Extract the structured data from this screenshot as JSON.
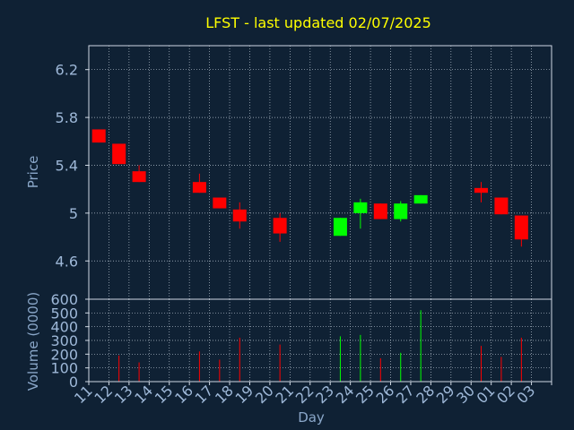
{
  "chart_data": [
    {
      "type": "candlestick",
      "title": "LFST - last updated 02/07/2025",
      "ylabel": "Price",
      "xlabel": "Day",
      "ylim": [
        4.28,
        6.4
      ],
      "yticks": [
        "6.2",
        "5.8",
        "5.4",
        "5",
        "4.6"
      ],
      "ytick_values": [
        6.2,
        5.8,
        5.4,
        5.0,
        4.6
      ],
      "xticks": [
        "11",
        "12",
        "13",
        "14",
        "15",
        "16",
        "17",
        "18",
        "19",
        "20",
        "21",
        "22",
        "23",
        "24",
        "25",
        "26",
        "27",
        "28",
        "29",
        "30",
        "01",
        "02",
        "03"
      ],
      "grid": true,
      "candles": [
        {
          "day": "11",
          "open": 5.7,
          "high": 5.7,
          "low": 5.59,
          "close": 5.59,
          "color": "red"
        },
        {
          "day": "12",
          "open": 5.58,
          "high": 5.58,
          "low": 5.41,
          "close": 5.41,
          "color": "red"
        },
        {
          "day": "13",
          "open": 5.35,
          "high": 5.4,
          "low": 5.26,
          "close": 5.26,
          "color": "red"
        },
        {
          "day": "16",
          "open": 5.26,
          "high": 5.33,
          "low": 5.17,
          "close": 5.17,
          "color": "red"
        },
        {
          "day": "17",
          "open": 5.13,
          "high": 5.13,
          "low": 5.04,
          "close": 5.04,
          "color": "red"
        },
        {
          "day": "18",
          "open": 5.03,
          "high": 5.09,
          "low": 4.87,
          "close": 4.93,
          "color": "red"
        },
        {
          "day": "20",
          "open": 4.96,
          "high": 5.0,
          "low": 4.76,
          "close": 4.83,
          "color": "red"
        },
        {
          "day": "23",
          "open": 4.81,
          "high": 4.96,
          "low": 4.81,
          "close": 4.96,
          "color": "green"
        },
        {
          "day": "24",
          "open": 5.0,
          "high": 5.12,
          "low": 4.87,
          "close": 5.09,
          "color": "green"
        },
        {
          "day": "25",
          "open": 5.08,
          "high": 5.08,
          "low": 4.95,
          "close": 4.95,
          "color": "red"
        },
        {
          "day": "26",
          "open": 4.95,
          "high": 5.1,
          "low": 4.93,
          "close": 5.08,
          "color": "green"
        },
        {
          "day": "27",
          "open": 5.08,
          "high": 5.15,
          "low": 5.08,
          "close": 5.15,
          "color": "green"
        },
        {
          "day": "30",
          "open": 5.21,
          "high": 5.26,
          "low": 5.09,
          "close": 5.17,
          "color": "red"
        },
        {
          "day": "01",
          "open": 5.13,
          "high": 5.13,
          "low": 4.99,
          "close": 4.99,
          "color": "red"
        },
        {
          "day": "02",
          "open": 4.98,
          "high": 4.98,
          "low": 4.72,
          "close": 4.78,
          "color": "red"
        }
      ]
    },
    {
      "type": "bar",
      "ylabel": "Volume (0000)",
      "xlabel": "Day",
      "ylim": [
        0,
        600
      ],
      "yticks": [
        "600",
        "500",
        "400",
        "300",
        "200",
        "100",
        "0"
      ],
      "ytick_values": [
        600,
        500,
        400,
        300,
        200,
        100,
        0
      ],
      "xticks": [
        "11",
        "12",
        "13",
        "14",
        "15",
        "16",
        "17",
        "18",
        "19",
        "20",
        "21",
        "22",
        "23",
        "24",
        "25",
        "26",
        "27",
        "28",
        "29",
        "30",
        "01",
        "02",
        "03"
      ],
      "grid": true,
      "bars": [
        {
          "day": "12",
          "value": 190,
          "color": "red"
        },
        {
          "day": "13",
          "value": 140,
          "color": "red"
        },
        {
          "day": "16",
          "value": 220,
          "color": "red"
        },
        {
          "day": "17",
          "value": 160,
          "color": "red"
        },
        {
          "day": "18",
          "value": 320,
          "color": "red"
        },
        {
          "day": "20",
          "value": 270,
          "color": "red"
        },
        {
          "day": "23",
          "value": 330,
          "color": "green"
        },
        {
          "day": "24",
          "value": 340,
          "color": "green"
        },
        {
          "day": "25",
          "value": 170,
          "color": "red"
        },
        {
          "day": "26",
          "value": 210,
          "color": "green"
        },
        {
          "day": "27",
          "value": 520,
          "color": "green"
        },
        {
          "day": "30",
          "value": 260,
          "color": "red"
        },
        {
          "day": "01",
          "value": 180,
          "color": "red"
        },
        {
          "day": "02",
          "value": 320,
          "color": "red"
        }
      ]
    }
  ],
  "colors": {
    "background": "#0f2134",
    "title": "#ffff00",
    "axis_text": "#8aa7c9",
    "tick_text": "#9eb8d8",
    "frame": "#cfd8e3",
    "grid": "#b8c4d0",
    "up": "#00ff00",
    "down": "#ff0000"
  }
}
